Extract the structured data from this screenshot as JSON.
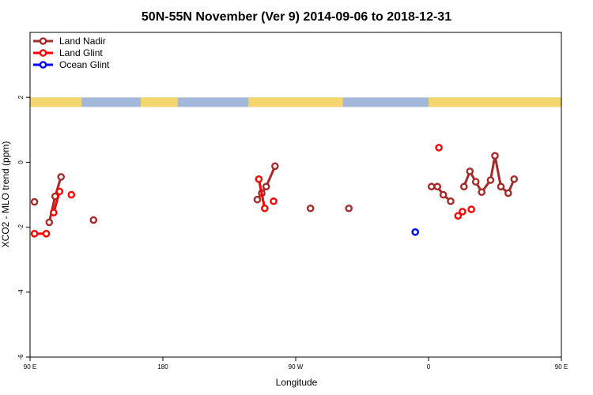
{
  "chart_data": {
    "type": "line",
    "title": "50N-55N November (Ver 9)   2014-09-06 to 2018-12-31",
    "xlabel": "Longitude",
    "ylabel": "XCO2 - MLO trend (ppm)",
    "xlim": [
      90,
      450
    ],
    "ylim": [
      -6,
      4
    ],
    "x_ticks": [
      {
        "value": 90,
        "label": "90 E"
      },
      {
        "value": 180,
        "label": "180"
      },
      {
        "value": 270,
        "label": "90 W"
      },
      {
        "value": 360,
        "label": "0"
      },
      {
        "value": 450,
        "label": "90 E"
      },
      {
        "value": 540,
        "label": "180"
      }
    ],
    "y_ticks": [
      -6,
      -4,
      -2,
      0,
      2
    ],
    "land_band_y": 1.85,
    "series": [
      {
        "name": "Land Nadir",
        "color": "#a52a2a",
        "connected_groups": [
          [
            [
              103,
              -1.85
            ],
            [
              107,
              -1.05
            ],
            [
              111,
              -0.45
            ]
          ],
          [
            [
              244,
              -1.15
            ],
            [
              247,
              -0.95
            ],
            [
              250,
              -0.75
            ],
            [
              256,
              -0.12
            ]
          ],
          [
            [
              362,
              -0.75
            ],
            [
              366,
              -0.75
            ],
            [
              370,
              -1.0
            ],
            [
              375,
              -1.2
            ]
          ],
          [
            [
              384,
              -0.75
            ],
            [
              388,
              -0.28
            ],
            [
              392,
              -0.6
            ],
            [
              396,
              -0.92
            ],
            [
              402,
              -0.55
            ],
            [
              405,
              0.2
            ],
            [
              409,
              -0.75
            ],
            [
              414,
              -0.95
            ],
            [
              418,
              -0.52
            ]
          ],
          [
            [
              469,
              -1.85
            ],
            [
              473,
              -1.05
            ],
            [
              477,
              -0.45
            ]
          ]
        ],
        "isolated_points": [
          [
            93,
            -1.22
          ],
          [
            133,
            -1.78
          ],
          [
            458,
            -1.22
          ],
          [
            280,
            -1.42
          ],
          [
            306,
            -1.42
          ]
        ]
      },
      {
        "name": "Land Glint",
        "color": "#ff0000",
        "connected_groups": [
          [
            [
              93,
              -2.2
            ],
            [
              101,
              -2.2
            ]
          ],
          [
            [
              106,
              -1.55
            ],
            [
              110,
              -0.9
            ]
          ],
          [
            [
              245,
              -0.52
            ],
            [
              249,
              -1.42
            ]
          ],
          [
            [
              459,
              -2.2
            ],
            [
              467,
              -2.2
            ]
          ],
          [
            [
              472,
              -1.55
            ],
            [
              476,
              -0.9
            ]
          ]
        ],
        "isolated_points": [
          [
            118,
            -1.0
          ],
          [
            255,
            -1.2
          ],
          [
            367,
            0.45
          ],
          [
            380,
            -1.65
          ],
          [
            383,
            -1.52
          ],
          [
            389,
            -1.45
          ],
          [
            484,
            -1.0
          ]
        ]
      },
      {
        "name": "Ocean Glint",
        "color": "#0000ff",
        "connected_groups": [],
        "isolated_points": [
          [
            351,
            -2.15
          ]
        ]
      }
    ],
    "legend_placement": "top-left",
    "grid": false
  }
}
